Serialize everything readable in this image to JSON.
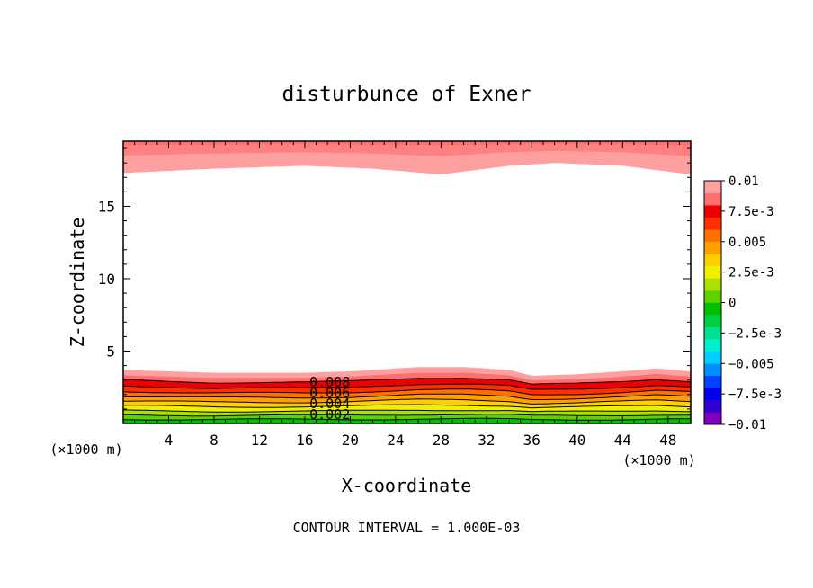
{
  "chart_data": {
    "type": "contour",
    "title": "disturbunce of Exner",
    "xlabel": "X-coordinate",
    "ylabel": "Z-coordinate",
    "x_unit": "(×1000 m)",
    "y_unit": "(×1000 m)",
    "xlim": [
      0,
      50
    ],
    "ylim": [
      0,
      19.5
    ],
    "x_ticks": [
      4,
      8,
      12,
      16,
      20,
      24,
      28,
      32,
      36,
      40,
      44,
      48
    ],
    "y_ticks": [
      5,
      10,
      15
    ],
    "footer": "CONTOUR INTERVAL = 1.000E-03",
    "contour_labels": [
      "0.008",
      "0.006",
      "0.004",
      "0.002"
    ],
    "colorbar": {
      "range": [
        -0.01,
        0.01
      ],
      "tick_labels": [
        {
          "value": 0.01,
          "label": "0.01"
        },
        {
          "value": 0.0075,
          "label": "7.5e-3"
        },
        {
          "value": 0.005,
          "label": "0.005"
        },
        {
          "value": 0.0025,
          "label": "2.5e-3"
        },
        {
          "value": 0,
          "label": "0"
        },
        {
          "value": -0.0025,
          "label": "−2.5e-3"
        },
        {
          "value": -0.005,
          "label": "−0.005"
        },
        {
          "value": -0.0075,
          "label": "−7.5e-3"
        },
        {
          "value": -0.01,
          "label": "−0.01"
        }
      ],
      "colors": [
        "#7f00bf",
        "#2f00cf",
        "#0000ef",
        "#0040ff",
        "#008fff",
        "#00cfff",
        "#00efcf",
        "#00e08f",
        "#00cf40",
        "#00c000",
        "#5fd000",
        "#afdf00",
        "#efef00",
        "#ffcf00",
        "#ffa000",
        "#ff7000",
        "#ff3000",
        "#ef0000",
        "#ff6f6f",
        "#ffa0a0"
      ]
    },
    "upper_layer_bottom": [
      [
        0,
        17.3
      ],
      [
        8,
        17.6
      ],
      [
        16,
        17.8
      ],
      [
        22,
        17.6
      ],
      [
        28,
        17.2
      ],
      [
        34,
        17.8
      ],
      [
        38,
        18.0
      ],
      [
        44,
        17.8
      ],
      [
        50,
        17.2
      ]
    ],
    "lower_layer_top": [
      [
        0,
        3.7
      ],
      [
        8,
        3.5
      ],
      [
        16,
        3.5
      ],
      [
        20,
        3.6
      ],
      [
        26,
        3.9
      ],
      [
        30,
        3.9
      ],
      [
        34,
        3.7
      ],
      [
        36,
        3.3
      ],
      [
        40,
        3.4
      ],
      [
        44,
        3.6
      ],
      [
        47,
        3.8
      ],
      [
        50,
        3.6
      ]
    ]
  }
}
